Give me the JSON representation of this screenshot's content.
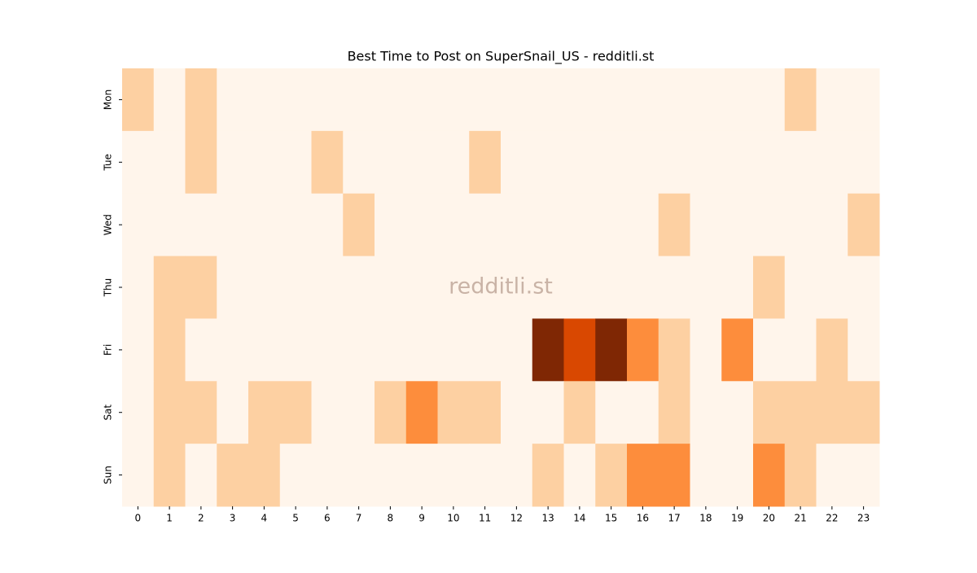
{
  "chart_data": {
    "type": "heatmap",
    "title": "Best Time to Post on SuperSnail_US - redditli.st",
    "watermark": "redditli.st",
    "x": [
      0,
      1,
      2,
      3,
      4,
      5,
      6,
      7,
      8,
      9,
      10,
      11,
      12,
      13,
      14,
      15,
      16,
      17,
      18,
      19,
      20,
      21,
      22,
      23
    ],
    "y": [
      "Mon",
      "Tue",
      "Wed",
      "Thu",
      "Fri",
      "Sat",
      "Sun"
    ],
    "values": [
      [
        1,
        0,
        1,
        0,
        0,
        0,
        0,
        0,
        0,
        0,
        0,
        0,
        0,
        0,
        0,
        0,
        0,
        0,
        0,
        0,
        0,
        1,
        0,
        0
      ],
      [
        0,
        0,
        1,
        0,
        0,
        0,
        1,
        0,
        0,
        0,
        0,
        1,
        0,
        0,
        0,
        0,
        0,
        0,
        0,
        0,
        0,
        0,
        0,
        0
      ],
      [
        0,
        0,
        0,
        0,
        0,
        0,
        0,
        1,
        0,
        0,
        0,
        0,
        0,
        0,
        0,
        0,
        0,
        1,
        0,
        0,
        0,
        0,
        0,
        1
      ],
      [
        0,
        1,
        1,
        0,
        0,
        0,
        0,
        0,
        0,
        0,
        0,
        0,
        0,
        0,
        0,
        0,
        0,
        0,
        0,
        0,
        1,
        0,
        0,
        0
      ],
      [
        0,
        1,
        0,
        0,
        0,
        0,
        0,
        0,
        0,
        0,
        0,
        0,
        0,
        4,
        3,
        4,
        2,
        1,
        0,
        2,
        0,
        0,
        1,
        0
      ],
      [
        0,
        1,
        1,
        0,
        1,
        1,
        0,
        0,
        1,
        2,
        1,
        1,
        0,
        0,
        1,
        0,
        0,
        1,
        0,
        0,
        1,
        1,
        1,
        1
      ],
      [
        0,
        1,
        0,
        1,
        1,
        0,
        0,
        0,
        0,
        0,
        0,
        0,
        0,
        1,
        0,
        1,
        2,
        2,
        0,
        0,
        2,
        1,
        0,
        0
      ]
    ],
    "colors": [
      "#fff5eb",
      "#fdd0a2",
      "#fd8d3c",
      "#d94801",
      "#7f2704"
    ]
  }
}
